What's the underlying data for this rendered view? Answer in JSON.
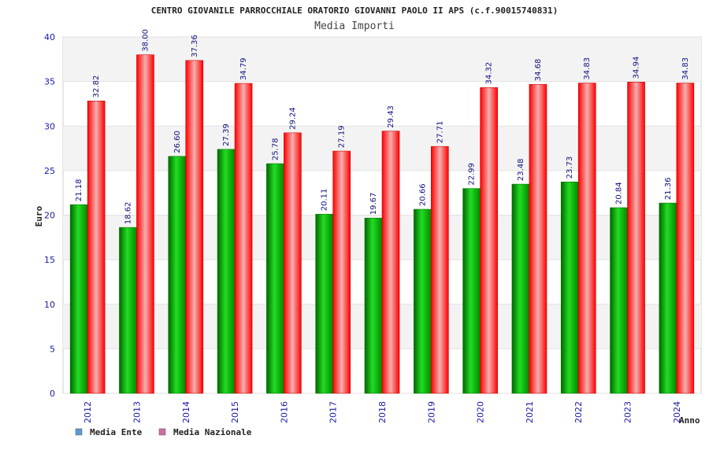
{
  "chart_data": {
    "type": "bar",
    "title": "CENTRO GIOVANILE PARROCCHIALE ORATORIO GIOVANNI PAOLO II APS (c.f.90015740831)",
    "subtitle": "Media Importi",
    "xlabel": "Anno",
    "ylabel": "Euro",
    "ylim": [
      0,
      40
    ],
    "yticks": [
      0,
      5,
      10,
      15,
      20,
      25,
      30,
      35,
      40
    ],
    "grid": true,
    "legend_position": "bottom-left",
    "categories": [
      "2012",
      "2013",
      "2014",
      "2015",
      "2016",
      "2017",
      "2018",
      "2019",
      "2020",
      "2021",
      "2022",
      "2023",
      "2024"
    ],
    "series": [
      {
        "name": "Media Ente",
        "color": "#00a000",
        "legend_color": "#5b9bd5",
        "values": [
          21.18,
          18.62,
          26.6,
          27.39,
          25.78,
          20.11,
          19.67,
          20.66,
          22.99,
          23.48,
          23.73,
          20.84,
          21.36
        ],
        "labels": [
          "21.18",
          "18.62",
          "26.60",
          "27.39",
          "25.78",
          "20.11",
          "19.67",
          "20.66",
          "22.99",
          "23.48",
          "23.73",
          "20.84",
          "21.36"
        ]
      },
      {
        "name": "Media Nazionale",
        "color": "#e00010",
        "legend_color": "#d36c9e",
        "values": [
          32.82,
          38.0,
          37.36,
          34.79,
          29.24,
          27.19,
          29.43,
          27.71,
          34.32,
          34.68,
          34.83,
          34.94,
          34.83
        ],
        "labels": [
          "32.82",
          "38.00",
          "37.36",
          "34.79",
          "29.24",
          "27.19",
          "29.43",
          "27.71",
          "34.32",
          "34.68",
          "34.83",
          "34.94",
          "34.83"
        ]
      }
    ]
  }
}
